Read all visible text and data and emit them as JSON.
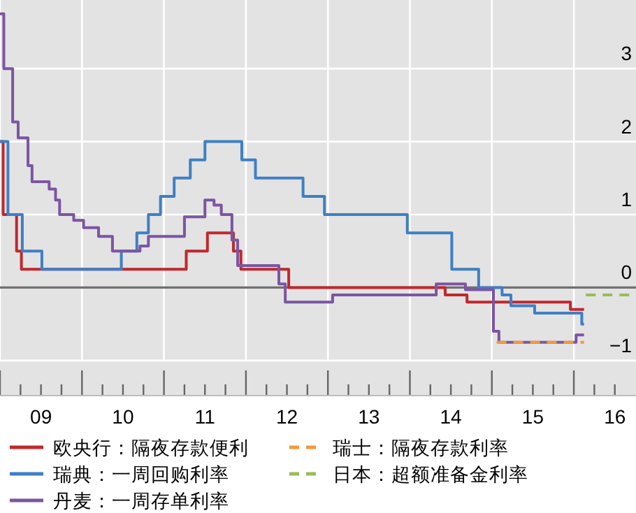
{
  "chart_data": {
    "type": "step",
    "xlim": [
      "2009-01-01",
      "2016-10-04"
    ],
    "ylim": [
      -1.48,
      3.94
    ],
    "xticks": [
      {
        "value": "2009",
        "label": null
      },
      {
        "value": "2009-04",
        "label": null
      },
      {
        "value": "2009-07",
        "label": "09"
      },
      {
        "value": "2009-10",
        "label": null
      },
      {
        "value": "2010",
        "label": null
      },
      {
        "value": "2010-04",
        "label": null
      },
      {
        "value": "2010-07",
        "label": "10"
      },
      {
        "value": "2010-10",
        "label": null
      },
      {
        "value": "2011",
        "label": null
      },
      {
        "value": "2011-04",
        "label": null
      },
      {
        "value": "2011-07",
        "label": "11"
      },
      {
        "value": "2011-10",
        "label": null
      },
      {
        "value": "2012",
        "label": null
      },
      {
        "value": "2012-04",
        "label": null
      },
      {
        "value": "2012-07",
        "label": "12"
      },
      {
        "value": "2012-10",
        "label": null
      },
      {
        "value": "2013",
        "label": null
      },
      {
        "value": "2013-04",
        "label": null
      },
      {
        "value": "2013-07",
        "label": "13"
      },
      {
        "value": "2013-10",
        "label": null
      },
      {
        "value": "2014",
        "label": null
      },
      {
        "value": "2014-04",
        "label": null
      },
      {
        "value": "2014-07",
        "label": "14"
      },
      {
        "value": "2014-10",
        "label": null
      },
      {
        "value": "2015",
        "label": null
      },
      {
        "value": "2015-04",
        "label": null
      },
      {
        "value": "2015-07",
        "label": "15"
      },
      {
        "value": "2015-10",
        "label": null
      },
      {
        "value": "2016",
        "label": null
      },
      {
        "value": "2016-04",
        "label": null
      },
      {
        "value": "2016-07",
        "label": "16"
      }
    ],
    "yticks": [
      -1,
      0,
      1,
      2,
      3
    ],
    "grid": true,
    "legend": "bottom",
    "ref_lines": [
      {
        "axis": "y",
        "value": 0,
        "color": "#707070"
      }
    ],
    "series": [
      {
        "name": "欧央行：隔夜存款便利",
        "color": "#c0282d",
        "x": [
          "2009-01-01",
          "2009-01-15",
          "2009-03-14",
          "2009-04-05",
          "2011-04-09",
          "2011-07-12",
          "2011-11-06",
          "2011-12-09",
          "2012-07-09",
          "2014-06-06",
          "2014-09-12",
          "2015-12-16",
          "2016-02-16"
        ],
        "values": [
          2,
          1,
          0.5,
          0.25,
          0.5,
          0.75,
          0.5,
          0.25,
          0,
          -0.1,
          -0.2,
          -0.3,
          -0.3
        ]
      },
      {
        "name": "瑞典：一周回购利率",
        "color": "#3f7fc4",
        "x": [
          "2009-01-01",
          "2009-02-06",
          "2009-04-09",
          "2009-07-05",
          "2010-06-24",
          "2010-09-02",
          "2010-10-23",
          "2010-12-16",
          "2011-02-16",
          "2011-04-27",
          "2011-07-01",
          "2011-12-13",
          "2012-02-13",
          "2012-09-12",
          "2012-12-16",
          "2013-12-20",
          "2014-07-05",
          "2014-11-03",
          "2015-02-16",
          "2015-03-25",
          "2015-07-09",
          "2016-02-06",
          "2016-02-16"
        ],
        "values": [
          2,
          1,
          0.5,
          0.25,
          0.5,
          0.75,
          1,
          1.25,
          1.5,
          1.75,
          2,
          1.75,
          1.5,
          1.25,
          1,
          0.75,
          0.25,
          0,
          -0.1,
          -0.25,
          -0.35,
          -0.5,
          -0.5
        ]
      },
      {
        "name": "丹麦：一周存单利率",
        "color": "#7b56a1",
        "x": [
          "2009-01-01",
          "2009-01-18",
          "2009-02-27",
          "2009-03-21",
          "2009-05-04",
          "2009-05-22",
          "2009-08-07",
          "2009-09-05",
          "2009-09-23",
          "2009-11-25",
          "2010-01-08",
          "2010-03-14",
          "2010-05-15",
          "2010-09-16",
          "2010-10-23",
          "2011-04-01",
          "2011-07-01",
          "2011-08-11",
          "2011-09-13",
          "2011-10-30",
          "2011-11-25",
          "2012-05-26",
          "2012-06-24",
          "2013-01-22",
          "2014-04-27",
          "2014-09-05",
          "2015-01-08",
          "2015-02-02",
          "2016-01-11",
          "2016-02-16"
        ],
        "values": [
          3.75,
          3,
          2.27,
          2.05,
          1.67,
          1.45,
          1.35,
          1.2,
          1,
          0.92,
          0.82,
          0.7,
          0.5,
          0.57,
          0.7,
          0.97,
          1.2,
          1.13,
          1,
          0.65,
          0.3,
          0.05,
          -0.2,
          -0.1,
          0.05,
          -0.03,
          -0.6,
          -0.75,
          -0.65,
          -0.65
        ]
      },
      {
        "name": "瑞士：隔夜存款利率",
        "color": "#f29b38",
        "line_style": "dashed",
        "x": [
          "2015-01-22",
          "2016-02-16"
        ],
        "values": [
          -0.75,
          -0.75
        ]
      },
      {
        "name": "日本：超额准备金利率",
        "color": "#9bbb59",
        "line_style": "dashed",
        "x": [
          "2016-02-24",
          "2016-10-04"
        ],
        "values": [
          -0.1,
          -0.1
        ]
      }
    ]
  }
}
